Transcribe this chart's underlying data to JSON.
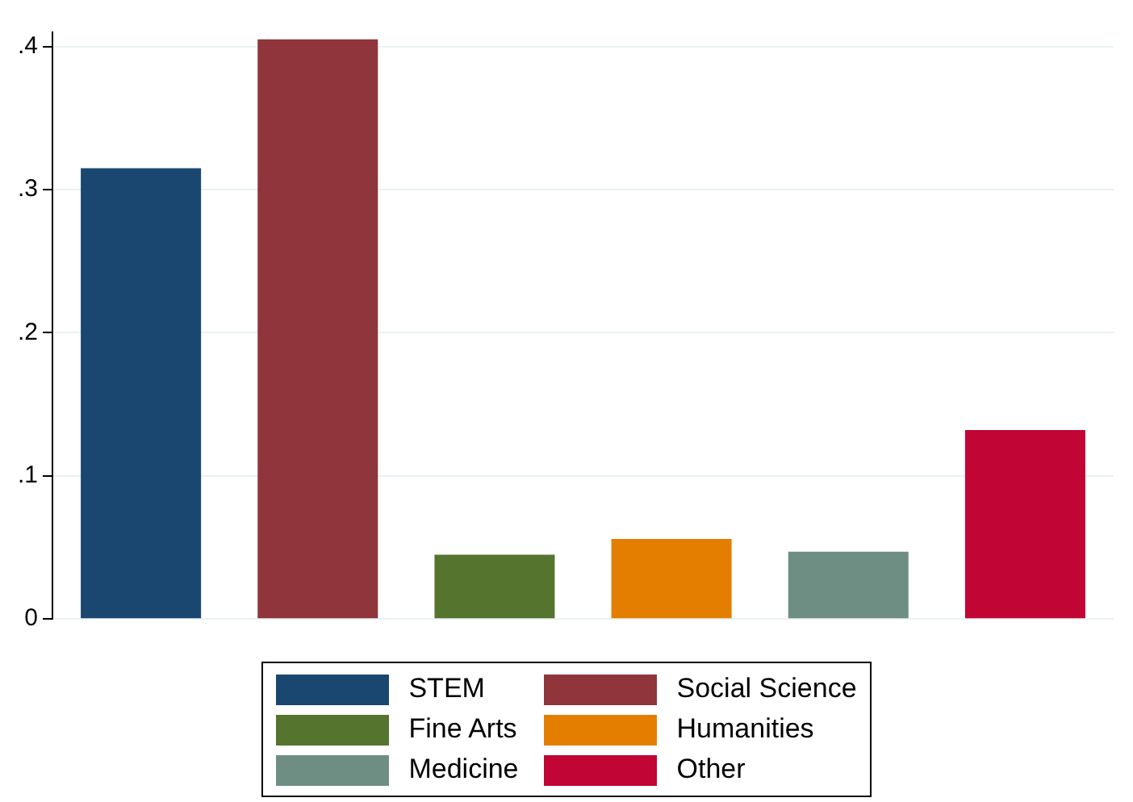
{
  "chart_data": {
    "type": "bar",
    "categories": [
      null,
      null,
      null,
      null,
      null,
      null
    ],
    "series": [
      {
        "name": "STEM",
        "color": "#1a476f",
        "values": [
          0.315,
          null,
          null,
          null,
          null,
          null
        ]
      },
      {
        "name": "Social Science",
        "color": "#90353b",
        "values": [
          null,
          0.405,
          null,
          null,
          null,
          null
        ]
      },
      {
        "name": "Fine Arts",
        "color": "#55752f",
        "values": [
          null,
          null,
          0.045,
          null,
          null,
          null
        ]
      },
      {
        "name": "Humanities",
        "color": "#e37e00",
        "values": [
          null,
          null,
          null,
          0.056,
          null,
          null
        ]
      },
      {
        "name": "Medicine",
        "color": "#6e8e84",
        "values": [
          null,
          null,
          null,
          null,
          0.047,
          null
        ]
      },
      {
        "name": "Other",
        "color": "#c10534",
        "values": [
          null,
          null,
          null,
          null,
          null,
          0.132
        ]
      }
    ],
    "ylim": [
      0,
      0.41
    ],
    "yticks": [
      0,
      {
        "value": 0.1,
        "label": ".1"
      },
      {
        "value": 0.2,
        "label": ".2"
      },
      {
        "value": 0.3,
        "label": ".3"
      },
      {
        "value": 0.4,
        "label": ".4"
      }
    ],
    "grid": "y",
    "legend": "bottom"
  }
}
